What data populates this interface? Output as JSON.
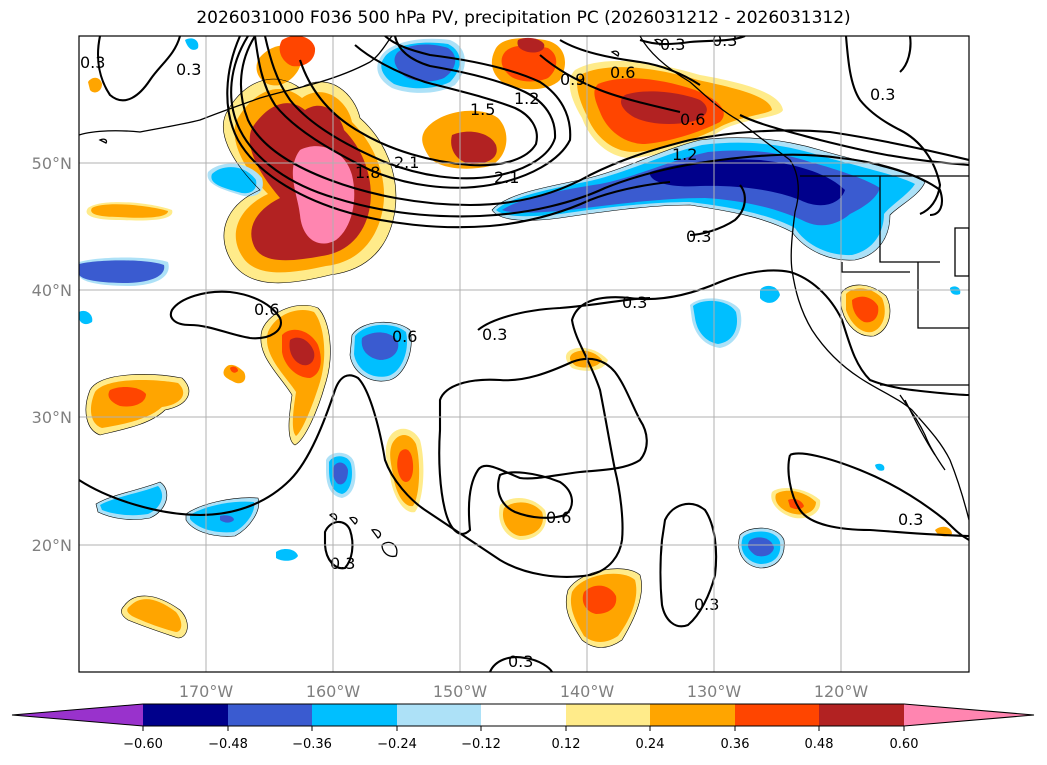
{
  "title": "2026031000 F036 500 hPa PV, precipitation PC (2026031212 - 2026031312)",
  "map": {
    "lon_ticks": [
      "170°W",
      "160°W",
      "150°W",
      "140°W",
      "130°W",
      "120°W"
    ],
    "lat_ticks": [
      "50°N",
      "40°N",
      "30°N",
      "20°N"
    ],
    "contour_labels": [
      "0.3",
      "0.3",
      "0.3",
      "0.3",
      "0.3",
      "0.3",
      "0.3",
      "0.3",
      "0.3",
      "0.3",
      "0.3",
      "0.3",
      "0.6",
      "0.6",
      "0.6",
      "0.6",
      "0.6",
      "0.9",
      "1.2",
      "1.2",
      "1.5",
      "1.8",
      "2.1",
      "2.1"
    ],
    "colors": {
      "neg_060": "#9932CC",
      "neg_048": "#00008B",
      "neg_036": "#3A5BD0",
      "neg_024": "#00BFFF",
      "neg_012": "#ADE1F7",
      "zero": "#FFFFFF",
      "pos_012": "#FFEB8A",
      "pos_024": "#FFA500",
      "pos_036": "#FF4500",
      "pos_048": "#B22222",
      "pos_060": "#FF85B0"
    }
  },
  "colorbar": {
    "labels": [
      "−0.60",
      "−0.48",
      "−0.36",
      "−0.24",
      "−0.12",
      "0.12",
      "0.24",
      "0.36",
      "0.48",
      "0.60"
    ]
  }
}
